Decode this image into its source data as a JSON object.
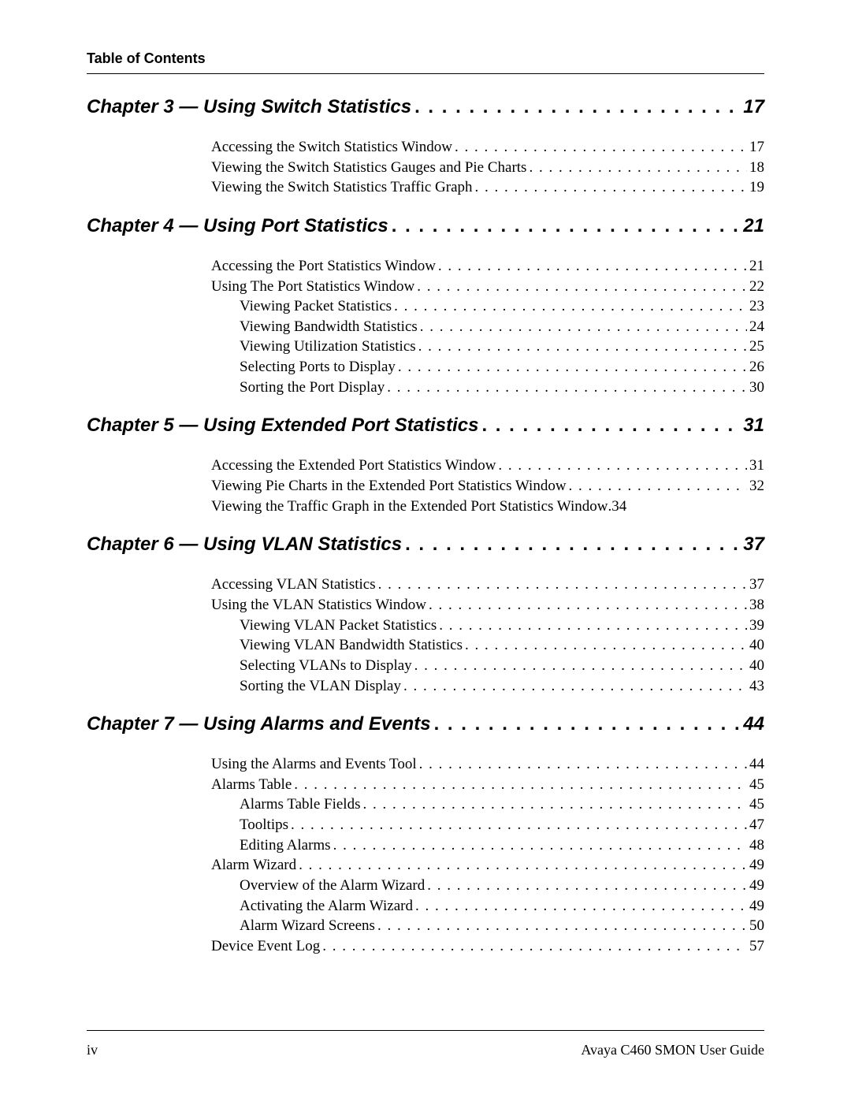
{
  "header": {
    "title": "Table of Contents"
  },
  "dots_chapter": ". . . . . . . . . . . . . . . . . . . . . . . . . . . . . . . . . . . . . . . . . . . . . . . . . . . . . . . . . . . .",
  "dots_entry": ". . . . . . . . . . . . . . . . . . . . . . . . . . . . . . . . . . . . . . . . . . . . . . . . . . . . . . . . . . . . . . . . . . . . . . . . . . . . . . . .",
  "chapters": [
    {
      "heading": "Chapter 3 — Using Switch Statistics ",
      "page": " 17",
      "entries": [
        {
          "title": "Accessing the Switch Statistics Window ",
          "page": "17",
          "indent": false
        },
        {
          "title": "Viewing the Switch Statistics Gauges and Pie Charts ",
          "page": "18",
          "indent": false
        },
        {
          "title": "Viewing the Switch Statistics Traffic Graph ",
          "page": "19",
          "indent": false
        }
      ]
    },
    {
      "heading": "Chapter 4 — Using Port Statistics",
      "page": " 21",
      "entries": [
        {
          "title": "Accessing the Port Statistics Window ",
          "page": "21",
          "indent": false
        },
        {
          "title": "Using The Port Statistics Window ",
          "page": "22",
          "indent": false
        },
        {
          "title": "Viewing Packet Statistics ",
          "page": "23",
          "indent": true
        },
        {
          "title": "Viewing Bandwidth Statistics ",
          "page": "24",
          "indent": true
        },
        {
          "title": "Viewing Utilization Statistics ",
          "page": "25",
          "indent": true
        },
        {
          "title": "Selecting Ports to Display ",
          "page": "26",
          "indent": true
        },
        {
          "title": "Sorting the Port Display ",
          "page": "30",
          "indent": true
        }
      ]
    },
    {
      "heading": "Chapter 5 — Using Extended Port Statistics ",
      "page": " 31",
      "entries": [
        {
          "title": "Accessing the Extended Port Statistics Window ",
          "page": "31",
          "indent": false
        },
        {
          "title": "Viewing Pie Charts in the Extended Port Statistics Window ",
          "page": "32",
          "indent": false
        },
        {
          "title": "Viewing the Traffic Graph in the Extended Port Statistics Window ",
          "page": "34",
          "indent": false,
          "tight": true
        }
      ]
    },
    {
      "heading": "Chapter 6 — Using VLAN Statistics ",
      "page": " 37",
      "entries": [
        {
          "title": "Accessing VLAN Statistics ",
          "page": "37",
          "indent": false
        },
        {
          "title": "Using the VLAN Statistics Window ",
          "page": "38",
          "indent": false
        },
        {
          "title": "Viewing VLAN Packet Statistics ",
          "page": "39",
          "indent": true
        },
        {
          "title": "Viewing VLAN Bandwidth Statistics ",
          "page": "40",
          "indent": true
        },
        {
          "title": "Selecting VLANs to Display ",
          "page": "40",
          "indent": true
        },
        {
          "title": "Sorting the VLAN Display ",
          "page": "43",
          "indent": true
        }
      ]
    },
    {
      "heading": "Chapter 7 — Using Alarms and Events ",
      "page": " 44",
      "entries": [
        {
          "title": "Using the Alarms and Events Tool ",
          "page": "44",
          "indent": false
        },
        {
          "title": "Alarms Table ",
          "page": "45",
          "indent": false
        },
        {
          "title": "Alarms Table Fields ",
          "page": "45",
          "indent": true
        },
        {
          "title": "Tooltips ",
          "page": "47",
          "indent": true
        },
        {
          "title": "Editing Alarms ",
          "page": "48",
          "indent": true
        },
        {
          "title": "Alarm Wizard ",
          "page": "49",
          "indent": false
        },
        {
          "title": "Overview of the Alarm Wizard ",
          "page": "49",
          "indent": true
        },
        {
          "title": "Activating the Alarm Wizard ",
          "page": "49",
          "indent": true
        },
        {
          "title": "Alarm Wizard Screens ",
          "page": "50",
          "indent": true
        },
        {
          "title": "Device Event Log ",
          "page": "57",
          "indent": false
        }
      ]
    }
  ],
  "footer": {
    "page_label": "iv",
    "doc_title": "Avaya C460 SMON User Guide"
  }
}
